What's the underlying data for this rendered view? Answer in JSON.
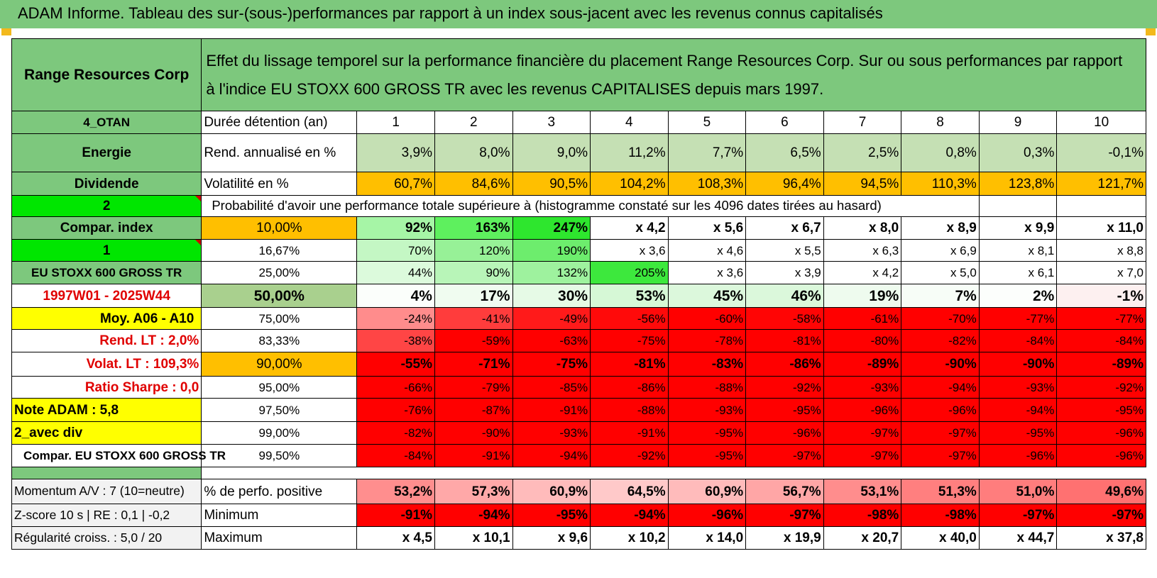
{
  "banner": "ADAM Informe. Tableau des sur-(sous-)performances par rapport à un index sous-jacent avec les revenus connus capitalisés",
  "header": {
    "company": "Range Resources Corp",
    "description_line1": "Effet du lissage temporel sur la performance financière du placement Range Resources Corp. Sur ou sous performances par rapport",
    "description_line2": "à l'indice EU STOXX 600 GROSS TR avec les revenus CAPITALISES depuis mars 1997."
  },
  "side": {
    "code": "4_OTAN",
    "sector": "Energie",
    "dividend": "Dividende",
    "value_2": "2",
    "compar_index": "Compar. index",
    "value_1": "1",
    "index_name": "EU STOXX 600 GROSS TR",
    "period": "1997W01 - 2025W44",
    "moy": "Moy. A06 - A10",
    "rend_lt": "Rend. LT :    2,0%",
    "volat_lt": "Volat. LT :    109,3%",
    "sharpe": "Ratio Sharpe :    0,0",
    "note": "Note ADAM : 5,8",
    "avec_div": "2_avec div",
    "compar_eu": "Compar. EU STOXX 600 GROSS TR"
  },
  "labels": {
    "duree": "Durée détention (an)",
    "rend": "Rend. annualisé en %",
    "volat": "Volatilité en %",
    "proba": "Probabilité d'avoir une performance totale supérieure à (histogramme constaté sur les 4096 dates tirées au hasard)"
  },
  "years": [
    "1",
    "2",
    "3",
    "4",
    "5",
    "6",
    "7",
    "8",
    "9",
    "10"
  ],
  "rendement": [
    "3,9%",
    "8,0%",
    "9,0%",
    "11,2%",
    "7,7%",
    "6,5%",
    "2,5%",
    "0,8%",
    "0,3%",
    "-0,1%"
  ],
  "volatilite": [
    "60,7%",
    "84,6%",
    "90,5%",
    "104,2%",
    "108,3%",
    "96,4%",
    "94,5%",
    "110,3%",
    "123,8%",
    "121,7%"
  ],
  "prob_rows": [
    {
      "pct": "10,00%",
      "values": [
        "92%",
        "163%",
        "247%",
        "x 4,2",
        "x 5,6",
        "x 6,7",
        "x 8,0",
        "x 8,9",
        "x 9,9",
        "x 11,0"
      ]
    },
    {
      "pct": "16,67%",
      "values": [
        "70%",
        "120%",
        "190%",
        "x 3,6",
        "x 4,6",
        "x 5,5",
        "x 6,3",
        "x 6,9",
        "x 8,1",
        "x 8,8"
      ]
    },
    {
      "pct": "25,00%",
      "values": [
        "44%",
        "90%",
        "132%",
        "205%",
        "x 3,6",
        "x 3,9",
        "x 4,2",
        "x 5,0",
        "x 6,1",
        "x 7,0"
      ]
    },
    {
      "pct": "50,00%",
      "values": [
        "4%",
        "17%",
        "30%",
        "53%",
        "45%",
        "46%",
        "19%",
        "7%",
        "2%",
        "-1%"
      ]
    },
    {
      "pct": "75,00%",
      "values": [
        "-24%",
        "-41%",
        "-49%",
        "-56%",
        "-60%",
        "-58%",
        "-61%",
        "-70%",
        "-77%",
        "-77%"
      ]
    },
    {
      "pct": "83,33%",
      "values": [
        "-38%",
        "-59%",
        "-63%",
        "-75%",
        "-78%",
        "-81%",
        "-80%",
        "-82%",
        "-84%",
        "-84%"
      ]
    },
    {
      "pct": "90,00%",
      "values": [
        "-55%",
        "-71%",
        "-75%",
        "-81%",
        "-83%",
        "-86%",
        "-89%",
        "-90%",
        "-90%",
        "-89%"
      ]
    },
    {
      "pct": "95,00%",
      "values": [
        "-66%",
        "-79%",
        "-85%",
        "-86%",
        "-88%",
        "-92%",
        "-93%",
        "-94%",
        "-93%",
        "-92%"
      ]
    },
    {
      "pct": "97,50%",
      "values": [
        "-76%",
        "-87%",
        "-91%",
        "-88%",
        "-93%",
        "-95%",
        "-96%",
        "-96%",
        "-94%",
        "-95%"
      ]
    },
    {
      "pct": "99,00%",
      "values": [
        "-82%",
        "-90%",
        "-93%",
        "-91%",
        "-95%",
        "-96%",
        "-97%",
        "-97%",
        "-95%",
        "-96%"
      ]
    },
    {
      "pct": "99,50%",
      "values": [
        "-84%",
        "-91%",
        "-94%",
        "-92%",
        "-95%",
        "-97%",
        "-97%",
        "-97%",
        "-96%",
        "-96%"
      ]
    }
  ],
  "bottom": {
    "momentum": "Momentum A/V : 7 (10=neutre)",
    "zscore": "Z-score 10 s | RE : 0,1 | -0,2",
    "regularite": "Régularité croiss. : 5,0 / 20",
    "pos_label": "% de perfo. positive",
    "min_label": "Minimum",
    "max_label": "Maximum",
    "positive": [
      "53,2%",
      "57,3%",
      "60,9%",
      "64,5%",
      "60,9%",
      "56,7%",
      "53,1%",
      "51,3%",
      "51,0%",
      "49,6%"
    ],
    "minimum": [
      "-91%",
      "-94%",
      "-95%",
      "-94%",
      "-96%",
      "-97%",
      "-98%",
      "-98%",
      "-97%",
      "-97%"
    ],
    "maximum": [
      "x 4,5",
      "x 10,1",
      "x 9,6",
      "x 10,2",
      "x 14,0",
      "x 19,9",
      "x 20,7",
      "x 40,0",
      "x 44,7",
      "x 37,8"
    ]
  },
  "colors": {
    "header_green": "#7dc87d",
    "bright_green": "#00e600",
    "yellow": "#ffff00",
    "orange": "#ffbf00",
    "red": "#ff0000",
    "text_red": "#e00000"
  }
}
